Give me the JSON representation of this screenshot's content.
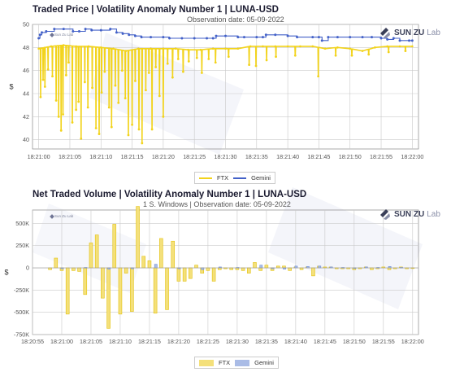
{
  "charts": {
    "price": {
      "title": "Traded Price  |  Volatility Anomaly Number 1  |  LUNA-USD",
      "subtitle": "Observation date: 05-09-2022",
      "ylabel": "$",
      "legend": [
        {
          "name": "FTX",
          "color": "#f2d31b"
        },
        {
          "name": "Gemini",
          "color": "#4361c8"
        }
      ]
    },
    "volume": {
      "title": "Net Traded Volume  |  Volatility Anomaly Number 1  |  LUNA-USD",
      "subtitle": "1 S. Windows  |  Observation date: 05-09-2022",
      "ylabel": "$",
      "legend": [
        {
          "name": "FTX",
          "color": "#f4e07a"
        },
        {
          "name": "Gemini",
          "color": "#aabce6"
        }
      ]
    }
  },
  "logo": {
    "brand": "SUN ZU",
    "suffix": "Lab"
  },
  "mini_logo": "Sun Zu Lab",
  "chart_data": [
    {
      "type": "line",
      "title": "Traded Price  |  Volatility Anomaly Number 1  |  LUNA-USD",
      "subtitle": "Observation date: 05-09-2022",
      "ylabel": "$",
      "xlabel": "",
      "x_ticks": [
        "18:21:00",
        "18:21:05",
        "18:21:10",
        "18:21:15",
        "18:21:20",
        "18:21:25",
        "18:21:30",
        "18:21:35",
        "18:21:40",
        "18:21:45",
        "18:21:50",
        "18:21:55",
        "18:22:00"
      ],
      "x_tick_seconds": [
        0,
        5,
        10,
        15,
        20,
        25,
        30,
        35,
        40,
        45,
        50,
        55,
        60
      ],
      "xlim_seconds": [
        -1,
        61
      ],
      "y_ticks": [
        40,
        42,
        44,
        46,
        48,
        50
      ],
      "ylim": [
        39.2,
        50
      ],
      "grid": true,
      "legend_position": "bottom-center",
      "series": [
        {
          "name": "Gemini",
          "color": "#4361c8",
          "points": [
            [
              0.0,
              48.8
            ],
            [
              0.2,
              49.1
            ],
            [
              0.5,
              49.3
            ],
            [
              1.2,
              49.4
            ],
            [
              2.5,
              49.6
            ],
            [
              4.0,
              49.6
            ],
            [
              5.5,
              49.4
            ],
            [
              6.5,
              49.4
            ],
            [
              7.5,
              49.6
            ],
            [
              8.5,
              49.5
            ],
            [
              10.0,
              49.5
            ],
            [
              11.5,
              49.6
            ],
            [
              12.5,
              49.3
            ],
            [
              13.5,
              49.2
            ],
            [
              14.5,
              49.1
            ],
            [
              15.5,
              49.0
            ],
            [
              16.5,
              48.9
            ],
            [
              18.0,
              48.9
            ],
            [
              20.0,
              48.9
            ],
            [
              21.0,
              48.8
            ],
            [
              23.0,
              48.8
            ],
            [
              25.0,
              48.8
            ],
            [
              27.0,
              48.8
            ],
            [
              28.0,
              48.8
            ],
            [
              28.5,
              49.0
            ],
            [
              30.0,
              49.0
            ],
            [
              32.0,
              48.9
            ],
            [
              33.0,
              48.9
            ],
            [
              35.0,
              48.9
            ],
            [
              36.0,
              48.9
            ],
            [
              36.5,
              49.1
            ],
            [
              38.0,
              49.1
            ],
            [
              40.0,
              49.0
            ],
            [
              41.5,
              48.9
            ],
            [
              44.0,
              48.9
            ],
            [
              45.0,
              48.9
            ],
            [
              45.5,
              48.6
            ],
            [
              46.5,
              48.9
            ],
            [
              48.0,
              48.9
            ],
            [
              50.0,
              48.9
            ],
            [
              52.0,
              48.9
            ],
            [
              53.5,
              48.9
            ],
            [
              55.0,
              48.8
            ],
            [
              56.0,
              48.7
            ],
            [
              57.0,
              48.8
            ],
            [
              58.0,
              48.6
            ],
            [
              59.5,
              48.6
            ],
            [
              60.0,
              48.6
            ]
          ]
        },
        {
          "name": "FTX",
          "color": "#f2d31b",
          "base": [
            [
              0,
              47.9
            ],
            [
              2,
              48.1
            ],
            [
              4,
              48.2
            ],
            [
              6,
              48.1
            ],
            [
              8,
              48.1
            ],
            [
              10,
              48.0
            ],
            [
              12,
              47.9
            ],
            [
              14,
              47.7
            ],
            [
              16,
              47.9
            ],
            [
              18,
              47.9
            ],
            [
              20,
              47.9
            ],
            [
              22,
              47.9
            ],
            [
              24,
              47.8
            ],
            [
              26,
              47.8
            ],
            [
              28,
              47.9
            ],
            [
              30,
              47.9
            ],
            [
              32,
              47.9
            ],
            [
              34,
              48.1
            ],
            [
              36,
              48.1
            ],
            [
              38,
              48.1
            ],
            [
              40,
              48.1
            ],
            [
              42,
              48.1
            ],
            [
              44,
              48.1
            ],
            [
              46,
              47.9
            ],
            [
              48,
              48.0
            ],
            [
              50,
              47.9
            ],
            [
              52,
              47.7
            ],
            [
              54,
              48.0
            ],
            [
              56,
              48.1
            ],
            [
              58,
              48.1
            ],
            [
              60,
              48.1
            ]
          ],
          "dips": [
            [
              0.3,
              43.7
            ],
            [
              0.7,
              45.2
            ],
            [
              1.0,
              44.6
            ],
            [
              1.5,
              46.1
            ],
            [
              2.2,
              45.5
            ],
            [
              2.8,
              43.4
            ],
            [
              3.2,
              42.0
            ],
            [
              3.6,
              40.8
            ],
            [
              3.9,
              42.2
            ],
            [
              4.4,
              45.6
            ],
            [
              4.8,
              46.7
            ],
            [
              5.4,
              41.5
            ],
            [
              6.0,
              42.6
            ],
            [
              6.4,
              43.3
            ],
            [
              6.8,
              40.1
            ],
            [
              7.4,
              45.0
            ],
            [
              7.9,
              42.8
            ],
            [
              8.6,
              44.5
            ],
            [
              9.2,
              41.0
            ],
            [
              9.7,
              40.5
            ],
            [
              10.1,
              44.1
            ],
            [
              10.6,
              45.9
            ],
            [
              11.3,
              42.8
            ],
            [
              11.7,
              41.1
            ],
            [
              12.3,
              44.7
            ],
            [
              12.8,
              43.2
            ],
            [
              13.4,
              46.0
            ],
            [
              13.9,
              43.6
            ],
            [
              14.4,
              40.4
            ],
            [
              15.0,
              41.3
            ],
            [
              15.5,
              45.1
            ],
            [
              16.1,
              40.9
            ],
            [
              16.6,
              39.7
            ],
            [
              17.2,
              44.3
            ],
            [
              17.7,
              45.8
            ],
            [
              18.2,
              40.9
            ],
            [
              18.8,
              46.3
            ],
            [
              19.4,
              43.8
            ],
            [
              20.0,
              42.0
            ],
            [
              20.7,
              46.6
            ],
            [
              21.5,
              45.4
            ],
            [
              22.4,
              47.0
            ],
            [
              23.2,
              45.9
            ],
            [
              24.1,
              46.8
            ],
            [
              25.4,
              47.1
            ],
            [
              26.2,
              45.8
            ],
            [
              27.3,
              47.0
            ],
            [
              28.4,
              46.7
            ],
            [
              30.5,
              47.2
            ],
            [
              33.8,
              46.5
            ],
            [
              34.9,
              46.4
            ],
            [
              36.6,
              46.9
            ],
            [
              38.1,
              47.2
            ],
            [
              41.2,
              47.3
            ],
            [
              44.9,
              45.5
            ],
            [
              47.7,
              47.3
            ],
            [
              50.3,
              47.3
            ],
            [
              53.0,
              47.4
            ],
            [
              56.2,
              47.6
            ],
            [
              58.9,
              47.7
            ]
          ]
        }
      ]
    },
    {
      "type": "bar",
      "title": "Net Traded Volume  |  Volatility Anomaly Number 1  |  LUNA-USD",
      "subtitle": "1 S. Windows  |  Observation date: 05-09-2022",
      "ylabel": "$",
      "xlabel": "",
      "x_ticks": [
        "18:20:55",
        "18:21:00",
        "18:21:05",
        "18:21:10",
        "18:21:15",
        "18:21:20",
        "18:21:25",
        "18:21:30",
        "18:21:35",
        "18:21:40",
        "18:21:45",
        "18:21:50",
        "18:21:55",
        "18:22:00"
      ],
      "x_tick_seconds": [
        -5,
        0,
        5,
        10,
        15,
        20,
        25,
        30,
        35,
        40,
        45,
        50,
        55,
        60
      ],
      "xlim_seconds": [
        -5,
        61
      ],
      "y_ticks": [
        "-750K",
        "-500K",
        "-250K",
        "0",
        "250K",
        "500K"
      ],
      "y_tick_values": [
        -750000,
        -500000,
        -250000,
        0,
        250000,
        500000
      ],
      "ylim": [
        -750000,
        650000
      ],
      "grid": true,
      "legend_position": "bottom-center",
      "series": [
        {
          "name": "FTX",
          "color": "#f4e07a",
          "x": [
            -2,
            -1,
            0,
            1,
            2,
            3,
            4,
            5,
            6,
            7,
            8,
            9,
            10,
            11,
            12,
            13,
            14,
            15,
            16,
            17,
            18,
            19,
            20,
            21,
            22,
            23,
            24,
            25,
            26,
            27,
            28,
            29,
            30,
            31,
            32,
            33,
            34,
            35,
            36,
            37,
            38,
            39,
            40,
            41,
            42,
            43,
            44,
            45,
            46,
            47,
            48,
            49,
            50,
            51,
            52,
            53,
            54,
            55,
            56,
            57,
            58,
            59,
            60
          ],
          "values": [
            -20000,
            110000,
            -30000,
            -520000,
            -30000,
            -40000,
            -300000,
            280000,
            370000,
            -340000,
            -680000,
            490000,
            -520000,
            -60000,
            -490000,
            690000,
            130000,
            80000,
            -510000,
            330000,
            -470000,
            300000,
            -150000,
            -150000,
            -120000,
            30000,
            -60000,
            -30000,
            -150000,
            -20000,
            -10000,
            -20000,
            -20000,
            -30000,
            -60000,
            60000,
            -30000,
            30000,
            -30000,
            20000,
            20000,
            -30000,
            10000,
            -20000,
            10000,
            -90000,
            20000,
            10000,
            10000,
            -10000,
            -10000,
            -10000,
            -20000,
            -10000,
            10000,
            -20000,
            -10000,
            10000,
            -20000,
            -10000,
            10000,
            -10000,
            0
          ]
        },
        {
          "name": "Gemini",
          "color": "#aabce6",
          "x": [
            0,
            4,
            8,
            12,
            16,
            20,
            24,
            27,
            30,
            34,
            36,
            38,
            40,
            42,
            44,
            46,
            48,
            50,
            52,
            54,
            56,
            58
          ],
          "values": [
            -10000,
            5000,
            -15000,
            -10000,
            40000,
            -10000,
            -20000,
            10000,
            5000,
            30000,
            -10000,
            -15000,
            20000,
            15000,
            20000,
            10000,
            5000,
            -5000,
            10000,
            5000,
            15000,
            5000
          ]
        }
      ]
    }
  ]
}
